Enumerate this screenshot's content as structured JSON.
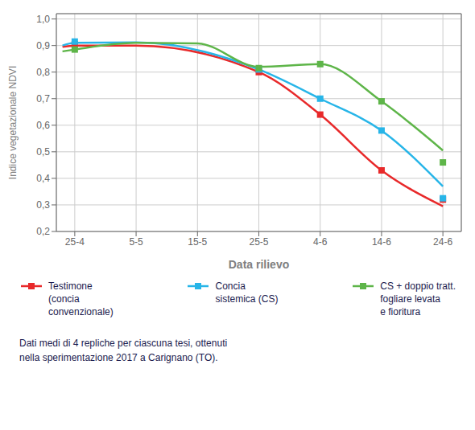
{
  "chart_data": {
    "type": "line",
    "xlabel": "Data rilievo",
    "ylabel": "Indice vegetazionale NDVI",
    "grid": true,
    "xlim": [
      -3,
      63
    ],
    "xticks": [
      {
        "value": 0,
        "label": "25-4"
      },
      {
        "value": 10,
        "label": "5-5"
      },
      {
        "value": 20,
        "label": "15-5"
      },
      {
        "value": 30,
        "label": "25-5"
      },
      {
        "value": 40,
        "label": "4-6"
      },
      {
        "value": 50,
        "label": "14-6"
      },
      {
        "value": 60,
        "label": "24-6"
      }
    ],
    "ylim": [
      0.2,
      1.02
    ],
    "yticks": [
      {
        "value": 0.2,
        "label": "0,2"
      },
      {
        "value": 0.3,
        "label": "0,3"
      },
      {
        "value": 0.4,
        "label": "0,4"
      },
      {
        "value": 0.5,
        "label": "0,5"
      },
      {
        "value": 0.6,
        "label": "0,6"
      },
      {
        "value": 0.7,
        "label": "0,7"
      },
      {
        "value": 0.8,
        "label": "0,8"
      },
      {
        "value": 0.9,
        "label": "0,9"
      },
      {
        "value": 1.0,
        "label": "1,0"
      }
    ],
    "series": [
      {
        "name": "Testimone\n(concia\nconvenzionale)",
        "color": "#e8292a",
        "type": "line",
        "x": [
          -2,
          0,
          10,
          30,
          40,
          50,
          60
        ],
        "values": [
          0.895,
          0.9,
          0.9,
          0.8,
          0.64,
          0.43,
          0.295
        ]
      },
      {
        "name": "Concia\nsistemica (CS)",
        "color": "#27b5e8",
        "type": "line",
        "x": [
          -2,
          0,
          10,
          30,
          40,
          50,
          60
        ],
        "values": [
          0.9,
          0.91,
          0.912,
          0.81,
          0.7,
          0.58,
          0.37
        ]
      },
      {
        "name": "CS + doppio tratt.\nfogliare levata\ne fioritura",
        "color": "#5eb549",
        "type": "line",
        "x": [
          -2,
          0,
          10,
          20,
          30,
          40,
          50,
          60
        ],
        "values": [
          0.878,
          0.885,
          0.91,
          0.908,
          0.82,
          0.83,
          0.69,
          0.505
        ]
      },
      {
        "name": "Testimone\n(concia\nconvenzionale)",
        "color": "#e8292a",
        "type": "scatter",
        "marker": "square",
        "x": [
          0,
          30,
          40,
          50,
          60
        ],
        "values": [
          0.905,
          0.8,
          0.64,
          0.43,
          0.32
        ]
      },
      {
        "name": "Concia\nsistemica (CS)",
        "color": "#27b5e8",
        "type": "scatter",
        "marker": "square",
        "x": [
          0,
          30,
          40,
          50,
          60
        ],
        "values": [
          0.915,
          0.81,
          0.7,
          0.58,
          0.325
        ]
      },
      {
        "name": "CS + doppio tratt.\nfogliare levata\ne fioritura",
        "color": "#5eb549",
        "type": "scatter",
        "marker": "square",
        "x": [
          0,
          30,
          40,
          50,
          60
        ],
        "values": [
          0.885,
          0.815,
          0.83,
          0.69,
          0.46
        ]
      }
    ],
    "annotations": [
      "Dati medi di 4 repliche per ciascuna tesi, ottenuti\nnella sperimentazione 2017 a Carignano (TO)."
    ]
  }
}
